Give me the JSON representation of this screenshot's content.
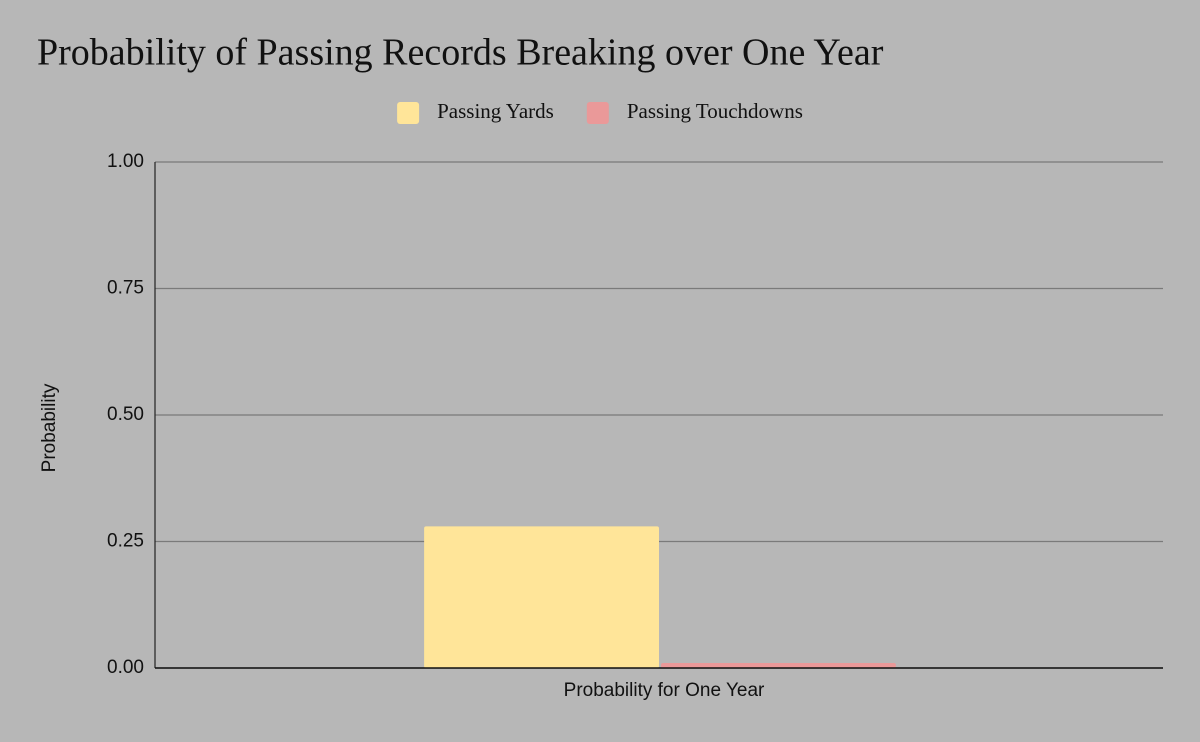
{
  "chart_data": {
    "type": "bar",
    "title": "Probability of Passing Records Breaking over One Year",
    "categories": [
      "Probability for One Year"
    ],
    "series": [
      {
        "name": "Passing Yards",
        "color": "#ffe599",
        "values": [
          0.28
        ]
      },
      {
        "name": "Passing Touchdowns",
        "color": "#ea9999",
        "values": [
          0.01
        ]
      }
    ],
    "y_label": "Probability",
    "ylim": [
      0,
      1
    ],
    "yticks": [
      {
        "value": 0,
        "label": "0.00"
      },
      {
        "value": 0.25,
        "label": "0.25"
      },
      {
        "value": 0.5,
        "label": "0.50"
      },
      {
        "value": 0.75,
        "label": "0.75"
      },
      {
        "value": 1,
        "label": "1.00"
      }
    ],
    "grid": true,
    "legend": "top"
  }
}
